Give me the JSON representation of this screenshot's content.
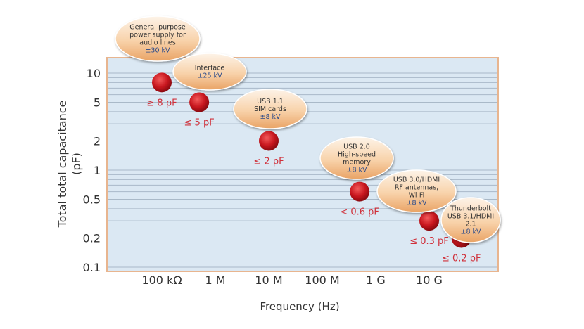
{
  "chart_data": {
    "type": "scatter",
    "xlabel": "Frequency (Hz)",
    "ylabel": [
      "Total total capacitance",
      "(pF)"
    ],
    "x_scale": "log",
    "y_scale": "log",
    "xlim": [
      40000,
      100000000000
    ],
    "ylim": [
      0.1,
      14
    ],
    "grid": true,
    "x_ticks": [
      {
        "value": 100000,
        "label": "100 kΩ"
      },
      {
        "value": 1000000,
        "label": "1 M"
      },
      {
        "value": 10000000,
        "label": "10 M"
      },
      {
        "value": 100000000,
        "label": "100 M"
      },
      {
        "value": 1000000000,
        "label": "1 G"
      },
      {
        "value": 10000000000,
        "label": "10 G"
      }
    ],
    "y_ticks": [
      {
        "value": 10,
        "label": "10"
      },
      {
        "value": 5,
        "label": "5"
      },
      {
        "value": 2,
        "label": "2"
      },
      {
        "value": 1,
        "label": "1"
      },
      {
        "value": 0.5,
        "label": "0.5"
      },
      {
        "value": 0.2,
        "label": "0.2"
      },
      {
        "value": 0.1,
        "label": "0.1"
      }
    ],
    "points": [
      {
        "x": 100000,
        "y": 8,
        "label": "≥ 8 pF",
        "callout": [
          "General-purpose",
          "power supply for",
          "audio lines"
        ],
        "esd": "±30 kV"
      },
      {
        "x": 500000,
        "y": 5,
        "label": "≤ 5 pF",
        "callout": [
          "Interface"
        ],
        "esd": "±25 kV"
      },
      {
        "x": 10000000,
        "y": 2,
        "label": "≤ 2 pF",
        "callout": [
          "USB 1.1",
          "SIM cards"
        ],
        "esd": "±8 kV"
      },
      {
        "x": 500000000,
        "y": 0.6,
        "label": "< 0.6 pF",
        "callout": [
          "USB 2.0",
          "High-speed",
          "memory"
        ],
        "esd": "±8 kV"
      },
      {
        "x": 10000000000,
        "y": 0.3,
        "label": "≤ 0.3 pF",
        "callout": [
          "USB 3.0/HDMI",
          "RF antennas,",
          "Wi-Fi"
        ],
        "esd": "±8 kV"
      },
      {
        "x": 40000000000,
        "y": 0.2,
        "label": "≤ 0.2 pF",
        "callout": [
          "Thunderbolt",
          "USB 3.1/HDMI",
          "2.1"
        ],
        "esd": "±8 kV"
      }
    ],
    "colors": {
      "plot_bg": "#dbe8f3",
      "border": "#e8b58f",
      "point": "#c8161e",
      "label": "#d0303a",
      "esd": "#2a4a8a",
      "callout": "#f3c08f"
    }
  }
}
